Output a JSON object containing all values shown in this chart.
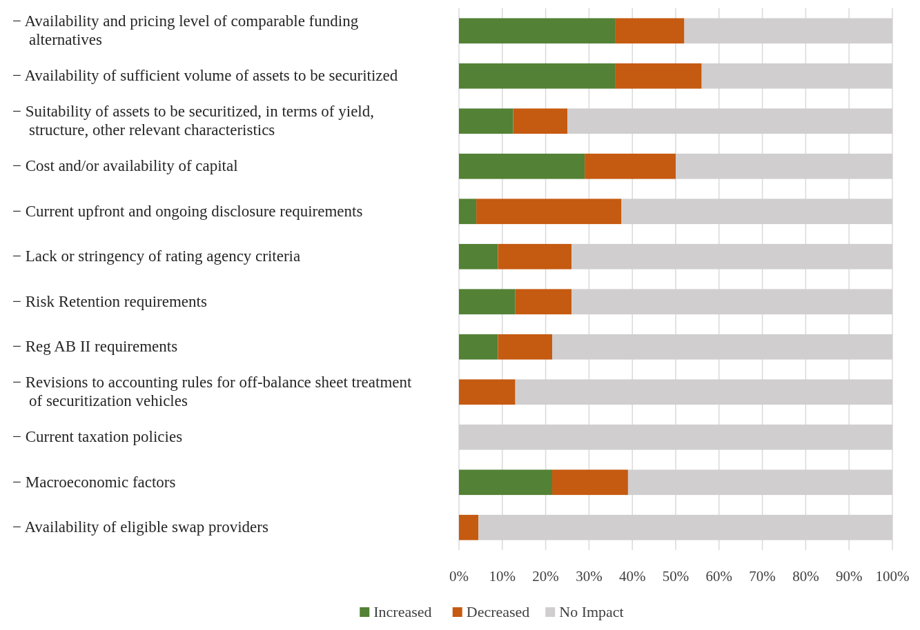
{
  "chart_data": {
    "type": "bar",
    "orientation": "horizontal",
    "stacked": true,
    "categories": [
      "− Availability and pricing level of comparable funding alternatives",
      "− Availability of sufficient volume of assets to be securitized",
      "− Suitability of assets to be securitized, in terms of yield, structure, other relevant characteristics",
      "− Cost and/or availability of capital",
      "− Current upfront and ongoing disclosure requirements",
      "− Lack or stringency of rating agency criteria",
      "− Risk Retention requirements",
      "− Reg AB II requirements",
      "− Revisions to accounting rules for off-balance sheet treatment of securitization vehicles",
      "− Current taxation policies",
      "− Macroeconomic factors",
      "− Availability of eligible swap providers"
    ],
    "series": [
      {
        "name": "Increased",
        "color": "#538135",
        "values": [
          36,
          36,
          12.5,
          29,
          4,
          9,
          13,
          9,
          0,
          0,
          21.5,
          0
        ]
      },
      {
        "name": "Decreased",
        "color": "#c55a11",
        "values": [
          16,
          20,
          12.5,
          21,
          33.5,
          17,
          13,
          12.5,
          13,
          0,
          17.5,
          4.5
        ]
      },
      {
        "name": "No Impact",
        "color": "#d0cece",
        "values": [
          48,
          44,
          75,
          50,
          62.5,
          74,
          74,
          78.5,
          87,
          100,
          61,
          95.5
        ]
      }
    ],
    "xlim": [
      0,
      100
    ],
    "xticks": [
      {
        "value": 0,
        "label": "0%"
      },
      {
        "value": 10,
        "label": "10%"
      },
      {
        "value": 20,
        "label": "20%"
      },
      {
        "value": 30,
        "label": "30%"
      },
      {
        "value": 40,
        "label": "40%"
      },
      {
        "value": 50,
        "label": "50%"
      },
      {
        "value": 60,
        "label": "60%"
      },
      {
        "value": 70,
        "label": "70%"
      },
      {
        "value": 80,
        "label": "80%"
      },
      {
        "value": 90,
        "label": "90%"
      },
      {
        "value": 100,
        "label": "100%"
      }
    ],
    "grid": "x",
    "legend": "bottom"
  }
}
